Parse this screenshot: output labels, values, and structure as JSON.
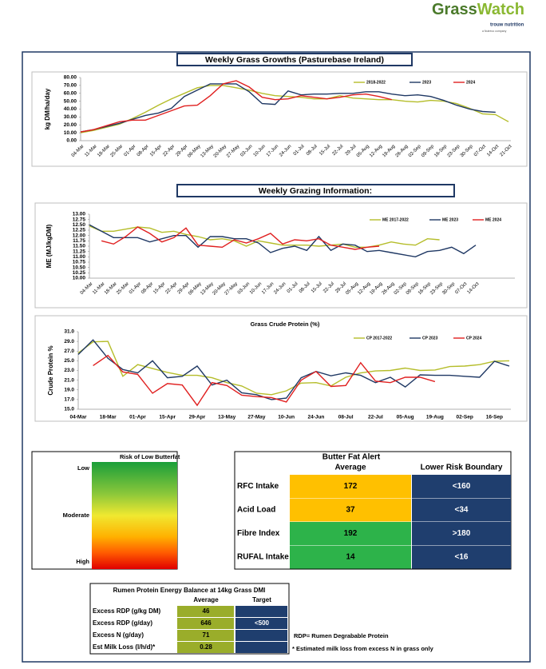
{
  "header": {
    "logo_left": "Grass",
    "logo_right": "Watch",
    "brand": "trouw nutrition",
    "brand_sub": "a Nutreco company"
  },
  "sections": [
    "Weekly Grass Growths (Pasturebase Ireland)",
    "Weekly Grazing Information:"
  ],
  "chart_data": [
    {
      "type": "line",
      "ylabel": "kg DM/ha/day",
      "categories": [
        "04-Mar",
        "11-Mar",
        "18-Mar",
        "25-Mar",
        "01-Apr",
        "08-Apr",
        "15-Apr",
        "22-Apr",
        "29-Apr",
        "06-May",
        "13-May",
        "20-May",
        "27-May",
        "03-Jun",
        "10-Jun",
        "17-Jun",
        "24-Jun",
        "01-Jul",
        "08-Jul",
        "15-Jul",
        "22-Jul",
        "29-Jul",
        "05-Aug",
        "12-Aug",
        "19-Aug",
        "26-Aug",
        "02-Sep",
        "09-Sep",
        "16-Sep",
        "23-Sep",
        "30-Sep",
        "07-Oct",
        "14-Oct",
        "21-Oct"
      ],
      "series": [
        {
          "name": "2018-2022",
          "color": "#b5bd2a",
          "values": [
            10,
            13,
            17,
            21,
            28,
            36,
            45,
            53,
            60,
            67,
            70,
            70,
            67,
            64,
            60,
            57,
            56,
            55,
            53,
            53,
            57,
            54,
            53,
            52,
            52,
            50,
            49,
            51,
            50,
            47,
            41,
            34,
            33,
            24
          ]
        },
        {
          "name": "2023",
          "color": "#1f3864",
          "values": [
            11,
            14,
            18,
            22,
            27,
            32,
            35,
            41,
            56,
            64,
            72,
            72,
            72,
            62,
            47,
            46,
            63,
            58,
            59,
            59,
            60,
            60,
            62,
            62,
            59,
            57,
            58,
            56,
            51,
            45,
            40,
            37,
            36,
            null
          ]
        },
        {
          "name": "2024",
          "color": "#e02020",
          "values": [
            11,
            14,
            19,
            24,
            26,
            26,
            32,
            38,
            44,
            45,
            57,
            72,
            76,
            68,
            55,
            52,
            53,
            57,
            55,
            53,
            55,
            58,
            59,
            56,
            52,
            null,
            null,
            null,
            null,
            null,
            null,
            null,
            null,
            null
          ]
        }
      ],
      "ylim": [
        0,
        80
      ],
      "yticks": [
        {
          "value": 0,
          "label": "0.00"
        },
        {
          "value": 10,
          "label": "10.00"
        },
        {
          "value": 20,
          "label": "20.00"
        },
        {
          "value": 30,
          "label": "30.00"
        },
        {
          "value": 40,
          "label": "40.00"
        },
        {
          "value": 50,
          "label": "50.00"
        },
        {
          "value": 60,
          "label": "60.00"
        },
        {
          "value": 70,
          "label": "70.00"
        },
        {
          "value": 80,
          "label": "80.00"
        }
      ],
      "grid": false,
      "legend": "upper right"
    },
    {
      "type": "line",
      "ylabel": "ME (MJ/kgDM)",
      "categories": [
        "04-Mar",
        "11-Mar",
        "18-Mar",
        "25-Mar",
        "01-Apr",
        "08-Apr",
        "15-Apr",
        "22-Apr",
        "29-Apr",
        "06-May",
        "13-May",
        "20-May",
        "27-May",
        "03-Jun",
        "10-Jun",
        "17-Jun",
        "24-Jun",
        "01-Jul",
        "08-Jul",
        "15-Jul",
        "22-Jul",
        "29-Jul",
        "05-Aug",
        "12-Aug",
        "19-Aug",
        "26-Aug",
        "02-Sep",
        "09-Sep",
        "16-Sep",
        "23-Sep",
        "30-Sep",
        "07-Oct",
        "14-Oct"
      ],
      "series": [
        {
          "name": "ME 2017-2022",
          "color": "#b5bd2a",
          "values": [
            12.45,
            12.2,
            12.2,
            12.3,
            12.4,
            12.35,
            12.15,
            12.2,
            12.05,
            11.95,
            11.8,
            11.85,
            11.75,
            11.5,
            11.75,
            11.65,
            11.55,
            11.55,
            11.55,
            11.5,
            11.55,
            11.6,
            11.45,
            11.45,
            11.55,
            11.7,
            11.6,
            11.55,
            11.85,
            11.8,
            null,
            null,
            null
          ]
        },
        {
          "name": "ME 2023",
          "color": "#1f3864",
          "values": [
            12.5,
            12.2,
            11.9,
            11.9,
            11.9,
            11.7,
            11.85,
            12.0,
            12.0,
            11.45,
            11.95,
            11.95,
            11.85,
            11.85,
            11.65,
            11.2,
            11.4,
            11.5,
            11.3,
            11.95,
            11.3,
            11.6,
            11.55,
            11.25,
            11.3,
            11.2,
            11.1,
            11.0,
            11.25,
            11.3,
            11.45,
            11.15,
            11.55
          ]
        },
        {
          "name": "ME 2024",
          "color": "#e02020",
          "values": [
            null,
            11.75,
            11.6,
            11.95,
            12.4,
            12.1,
            11.7,
            11.9,
            12.35,
            11.55,
            11.5,
            11.45,
            11.8,
            11.65,
            11.85,
            12.1,
            11.6,
            11.8,
            11.75,
            11.85,
            11.55,
            11.45,
            11.35,
            11.45,
            11.5,
            null,
            null,
            null,
            null,
            null,
            null,
            null,
            null
          ]
        }
      ],
      "ylim": [
        10,
        13
      ],
      "yticks": [
        {
          "value": 10,
          "label": "10.00"
        },
        {
          "value": 10.25,
          "label": "10.25"
        },
        {
          "value": 10.5,
          "label": "10.50"
        },
        {
          "value": 10.75,
          "label": "10.75"
        },
        {
          "value": 11,
          "label": "11.00"
        },
        {
          "value": 11.25,
          "label": "11.25"
        },
        {
          "value": 11.5,
          "label": "11.50"
        },
        {
          "value": 11.75,
          "label": "11.75"
        },
        {
          "value": 12,
          "label": "12.00"
        },
        {
          "value": 12.25,
          "label": "12.25"
        },
        {
          "value": 12.5,
          "label": "12.50"
        },
        {
          "value": 12.75,
          "label": "12.75"
        },
        {
          "value": 13,
          "label": "13.00"
        }
      ],
      "grid": false,
      "legend": "upper right"
    },
    {
      "type": "line",
      "title": "Grass Crude Protein (%)",
      "ylabel": "Crude Protein %",
      "categories": [
        "04-Mar",
        null,
        "18-Mar",
        null,
        "01-Apr",
        null,
        "15-Apr",
        null,
        "29-Apr",
        null,
        "13-May",
        null,
        "27-May",
        null,
        "10-Jun",
        null,
        "24-Jun",
        null,
        "08-Jul",
        null,
        "22-Jul",
        null,
        "05-Aug",
        null,
        "19-Aug",
        null,
        "02-Sep",
        null,
        "16-Sep",
        null
      ],
      "series": [
        {
          "name": "CP 2017-2022",
          "color": "#b5bd2a",
          "values": [
            26.6,
            28.9,
            29.0,
            21.8,
            24.2,
            23.4,
            22.6,
            22.0,
            22.0,
            21.5,
            20.5,
            19.8,
            18.3,
            18.0,
            18.8,
            20.4,
            20.5,
            19.8,
            21.6,
            22.5,
            22.9,
            23.0,
            23.5,
            23.0,
            23.1,
            23.8,
            23.9,
            24.2,
            24.9,
            25.0
          ]
        },
        {
          "name": "CP 2023",
          "color": "#1f3864",
          "values": [
            26.3,
            29.3,
            25.5,
            23.2,
            22.5,
            25.0,
            21.5,
            21.8,
            23.9,
            20.0,
            21.0,
            18.4,
            18.0,
            17.0,
            17.3,
            21.5,
            22.8,
            21.9,
            22.5,
            22.0,
            20.5,
            21.6,
            19.6,
            22.1,
            22.0,
            22.0,
            21.8,
            21.6,
            24.9,
            23.9
          ]
        },
        {
          "name": "CP 2024",
          "color": "#e02020",
          "values": [
            null,
            24.0,
            26.1,
            22.7,
            22.2,
            18.3,
            20.3,
            20.0,
            15.8,
            20.5,
            19.9,
            17.9,
            17.6,
            17.4,
            16.5,
            21.0,
            22.8,
            19.7,
            19.9,
            24.6,
            20.8,
            20.5,
            21.6,
            21.6,
            20.7,
            null,
            null,
            null,
            null,
            null
          ]
        }
      ],
      "ylim": [
        15,
        31
      ],
      "yticks": [
        {
          "value": 15,
          "label": "15.0"
        },
        {
          "value": 17,
          "label": "17.0"
        },
        {
          "value": 19,
          "label": "19.0"
        },
        {
          "value": 21,
          "label": "21.0"
        },
        {
          "value": 23,
          "label": "23.0"
        },
        {
          "value": 25,
          "label": "25.0"
        },
        {
          "value": 27,
          "label": "27.0"
        },
        {
          "value": 29,
          "label": "29.0"
        },
        {
          "value": 31,
          "label": "31.0"
        }
      ],
      "grid": false,
      "legend": "upper right"
    }
  ],
  "risk": {
    "title": "Risk of Low Butterfat",
    "levels": [
      "Low",
      "Moderate",
      "High"
    ]
  },
  "butterfat": {
    "title": "Butter Fat Alert",
    "columns": [
      "Average",
      "Lower Risk Boundary"
    ],
    "rows": [
      {
        "label": "RFC Intake",
        "average": 172,
        "boundary": "<160",
        "color": "#ffc000"
      },
      {
        "label": "Acid Load",
        "average": 37,
        "boundary": "<34",
        "color": "#ffc000"
      },
      {
        "label": "Fibre Index",
        "average": 192,
        "boundary": ">180",
        "color": "#2db34a"
      },
      {
        "label": "RUFAL Intake",
        "average": 14,
        "boundary": "<16",
        "color": "#2db34a"
      }
    ]
  },
  "rumen": {
    "title": "Rumen Protein Energy Balance at 14kg Grass DMI",
    "columns": [
      "Average",
      "Target"
    ],
    "rows": [
      {
        "label": "Excess RDP (g/kg DM)",
        "average": 46
      },
      {
        "label": "Excess RDP (g/day)",
        "average": 646,
        "target": "<500"
      },
      {
        "label": "Excess N (g/day)",
        "average": 71
      },
      {
        "label": "Est Milk Loss (l/h/d)*",
        "average": 0.28
      }
    ]
  },
  "notes": [
    "RDP= Rumen Degrabable Protein",
    "* Estimated milk loss from excess N in grass only"
  ]
}
